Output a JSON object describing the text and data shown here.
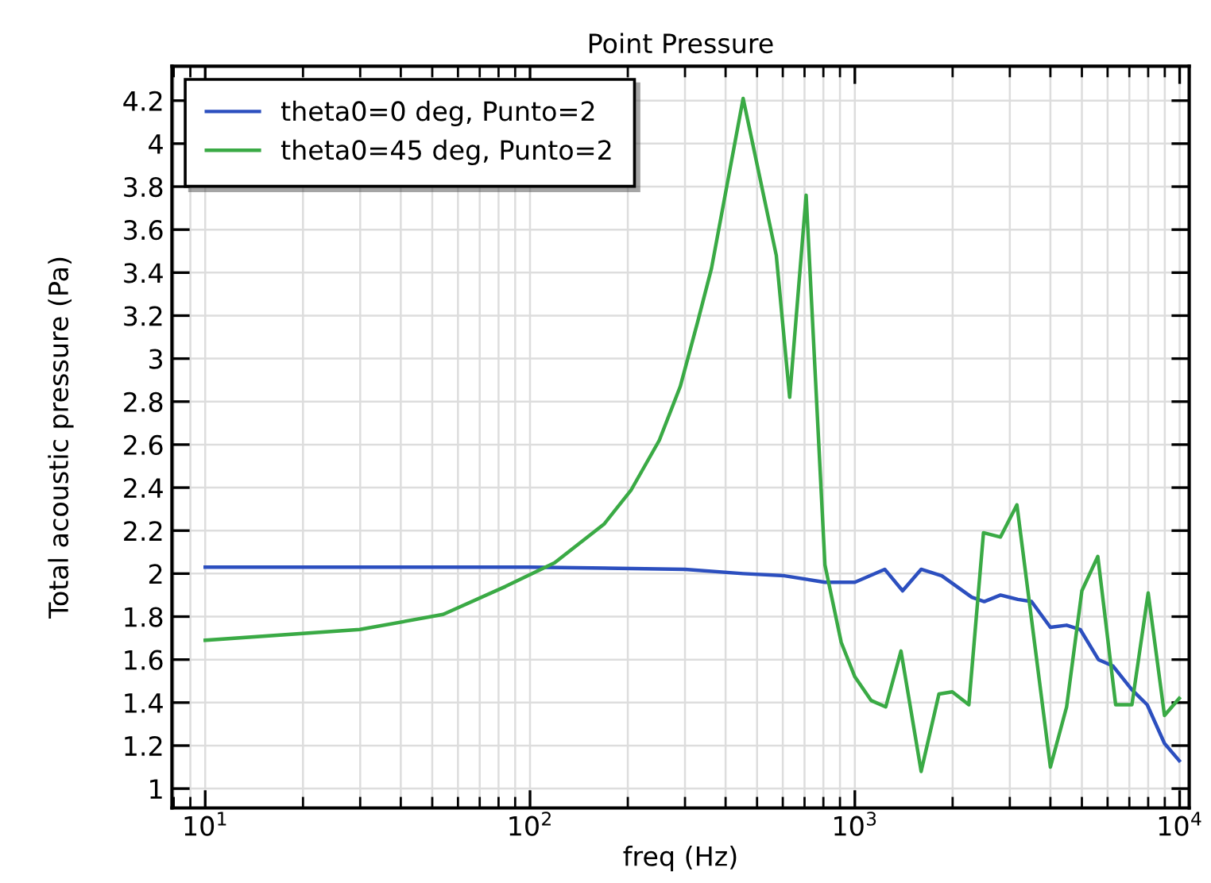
{
  "chart_data": {
    "type": "line",
    "title": "Point Pressure",
    "xlabel": "freq (Hz)",
    "ylabel": "Total acoustic pressure (Pa)",
    "log": "x",
    "grid": true,
    "legend": "top left",
    "line_style": "solid",
    "marker": "none",
    "xlim": [
      7.9,
      10700
    ],
    "ylim": [
      0.91,
      4.36
    ],
    "xticks": [
      {
        "value": 10,
        "label": "10$^{1}$"
      },
      {
        "value": 100,
        "label": "10$^{2}$"
      },
      {
        "value": 1000,
        "label": "10$^{3}$"
      },
      {
        "value": 10000,
        "label": "10$^{4}$"
      }
    ],
    "yticks": [
      1,
      1.2,
      1.4,
      1.6,
      1.8,
      2,
      2.2,
      2.4,
      2.6,
      2.8,
      3,
      3.2,
      3.4,
      3.6,
      3.8,
      4,
      4.2
    ],
    "series": [
      {
        "name": "theta0=0 deg, Punto=2",
        "color": "#2c4fbf",
        "x": [
          10,
          30,
          100,
          300,
          453,
          607,
          809,
          1000,
          1236,
          1403,
          1600,
          1852,
          2291,
          2502,
          2808,
          3177,
          3499,
          4000,
          4487,
          4943,
          5623,
          6237,
          7129,
          7943,
          8981,
          9970
        ],
        "values": [
          2.03,
          2.03,
          2.03,
          2.02,
          2.0,
          1.99,
          1.96,
          1.96,
          2.02,
          1.92,
          2.02,
          1.99,
          1.89,
          1.87,
          1.9,
          1.88,
          1.87,
          1.75,
          1.76,
          1.74,
          1.6,
          1.57,
          1.46,
          1.39,
          1.21,
          1.13
        ]
      },
      {
        "name": "theta0=45 deg, Punto=2",
        "color": "#3aaa45",
        "x": [
          10,
          29.9,
          54,
          84,
          119,
          169,
          205,
          250,
          290,
          328,
          362,
          453,
          573,
          630,
          708,
          809,
          908,
          1000,
          1122,
          1245,
          1387,
          1600,
          1815,
          1995,
          2244,
          2489,
          2808,
          3155,
          4000,
          4487,
          5000,
          5598,
          6353,
          7129,
          8000,
          8981,
          9970
        ],
        "values": [
          1.69,
          1.74,
          1.81,
          1.94,
          2.05,
          2.23,
          2.39,
          2.62,
          2.87,
          3.17,
          3.42,
          4.21,
          3.48,
          2.82,
          3.76,
          2.04,
          1.68,
          1.52,
          1.41,
          1.38,
          1.64,
          1.08,
          1.44,
          1.45,
          1.39,
          2.19,
          2.17,
          2.32,
          1.1,
          1.38,
          1.92,
          2.08,
          1.39,
          1.39,
          1.91,
          1.34,
          1.42
        ]
      }
    ]
  }
}
